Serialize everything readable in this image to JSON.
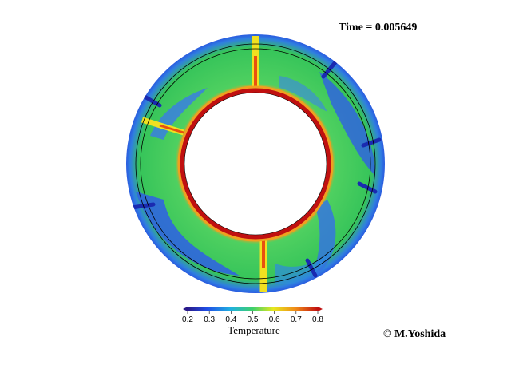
{
  "header": {
    "time_label": "Time = 0.005649"
  },
  "colorbar": {
    "title": "Temperature",
    "ticks": [
      "0.2",
      "0.3",
      "0.4",
      "0.5",
      "0.6",
      "0.7",
      "0.8"
    ],
    "range": [
      0.2,
      0.8
    ],
    "colors": [
      "#2a1a8a",
      "#1f4ee6",
      "#20b0e0",
      "#3fd06a",
      "#e6e81e",
      "#f08a18",
      "#c01010"
    ]
  },
  "footer": {
    "credit": "© M.Yoshida"
  }
}
